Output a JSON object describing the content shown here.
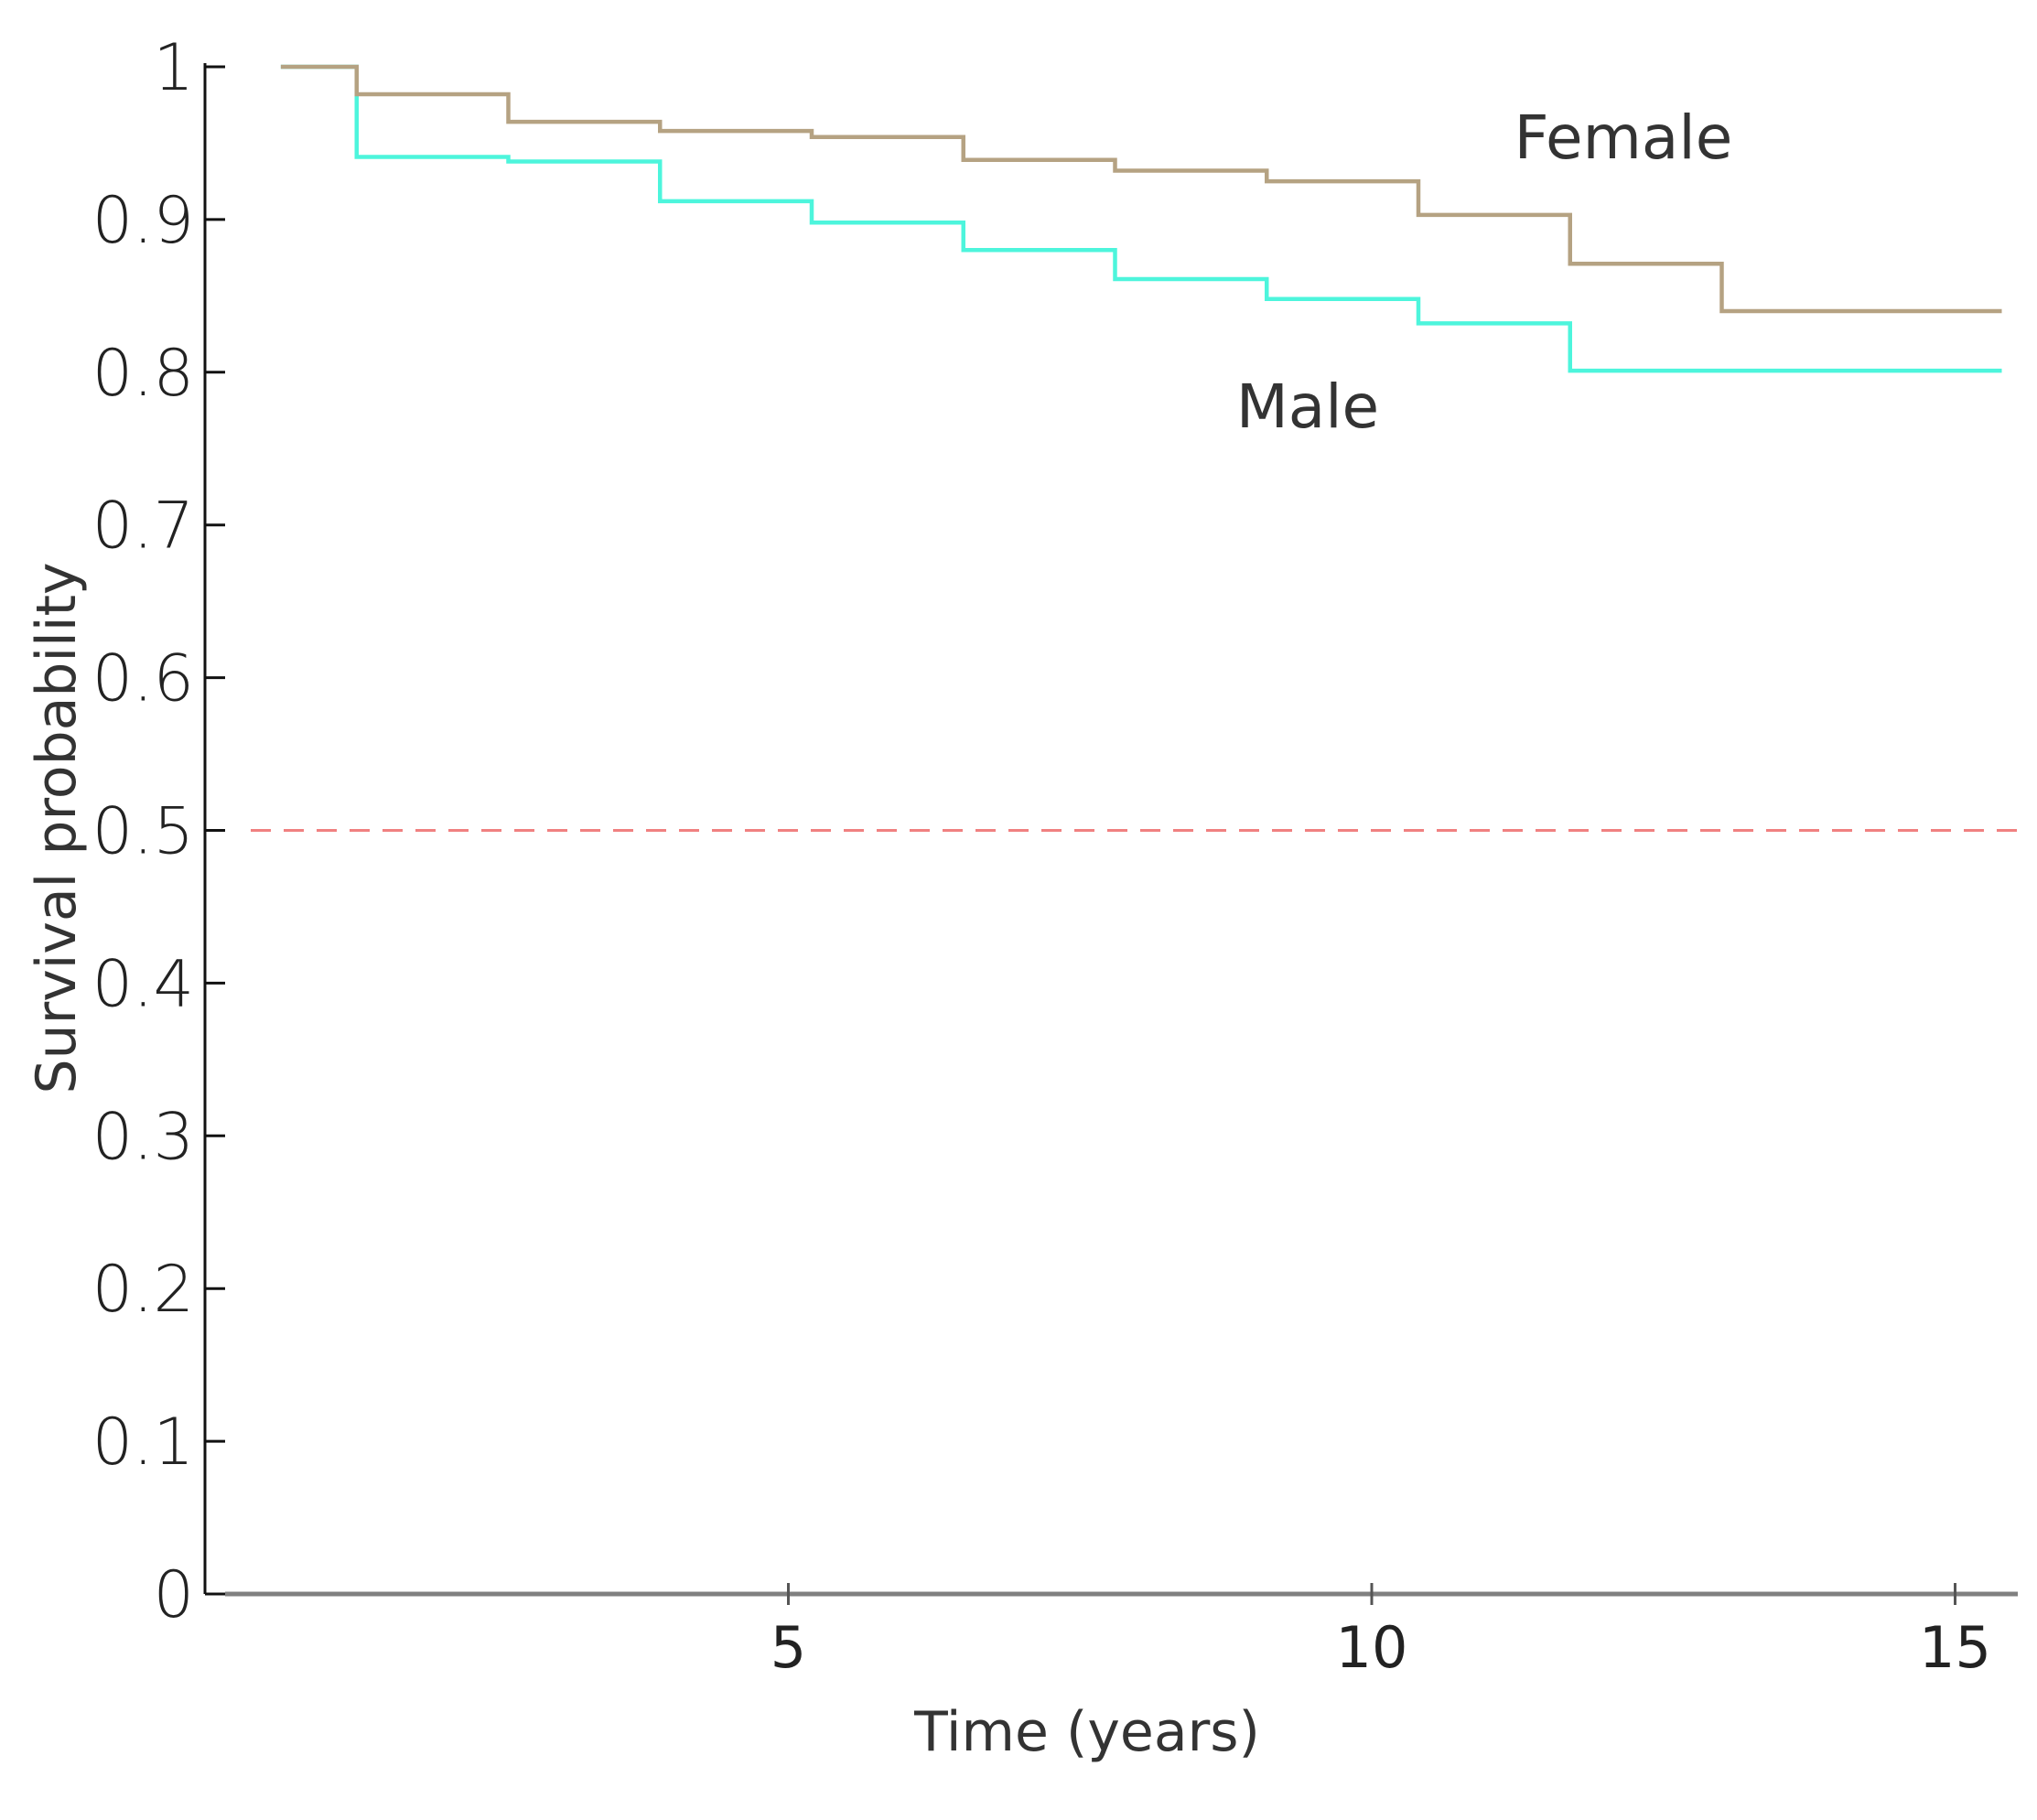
{
  "chart_data": {
    "type": "line",
    "subtype": "step",
    "title": "",
    "xlabel": "Time (years)",
    "ylabel": "Survival probability",
    "xlim": [
      0,
      15.4
    ],
    "ylim": [
      0,
      1
    ],
    "xticks": [
      5,
      10,
      15
    ],
    "yticks": [
      0,
      0.1,
      0.2,
      0.3,
      0.4,
      0.5,
      0.6,
      0.7,
      0.8,
      0.9,
      1
    ],
    "ytick_labels": [
      "0",
      "0.1",
      "0.2",
      "0.3",
      "0.4",
      "0.5",
      "0.6",
      "0.7",
      "0.8",
      "0.9",
      "1"
    ],
    "reference_line": {
      "y": 0.5,
      "style": "dashed",
      "color": "#f08080"
    },
    "series": [
      {
        "name": "Female",
        "color": "#b5a282",
        "x": [
          0.65,
          1.3,
          2.6,
          3.9,
          5.2,
          6.5,
          7.8,
          9.1,
          10.4,
          11.7,
          13.0,
          15.4
        ],
        "y": [
          1.0,
          0.982,
          0.964,
          0.958,
          0.954,
          0.939,
          0.932,
          0.925,
          0.903,
          0.871,
          0.84,
          0.84
        ]
      },
      {
        "name": "Male",
        "color": "#4df5dc",
        "x": [
          0.65,
          1.3,
          2.6,
          3.9,
          5.2,
          6.5,
          7.8,
          9.1,
          10.4,
          11.7,
          13.0,
          15.4
        ],
        "y": [
          1.0,
          0.941,
          0.938,
          0.912,
          0.898,
          0.88,
          0.861,
          0.848,
          0.832,
          0.801,
          0.801,
          0.801
        ]
      }
    ]
  }
}
